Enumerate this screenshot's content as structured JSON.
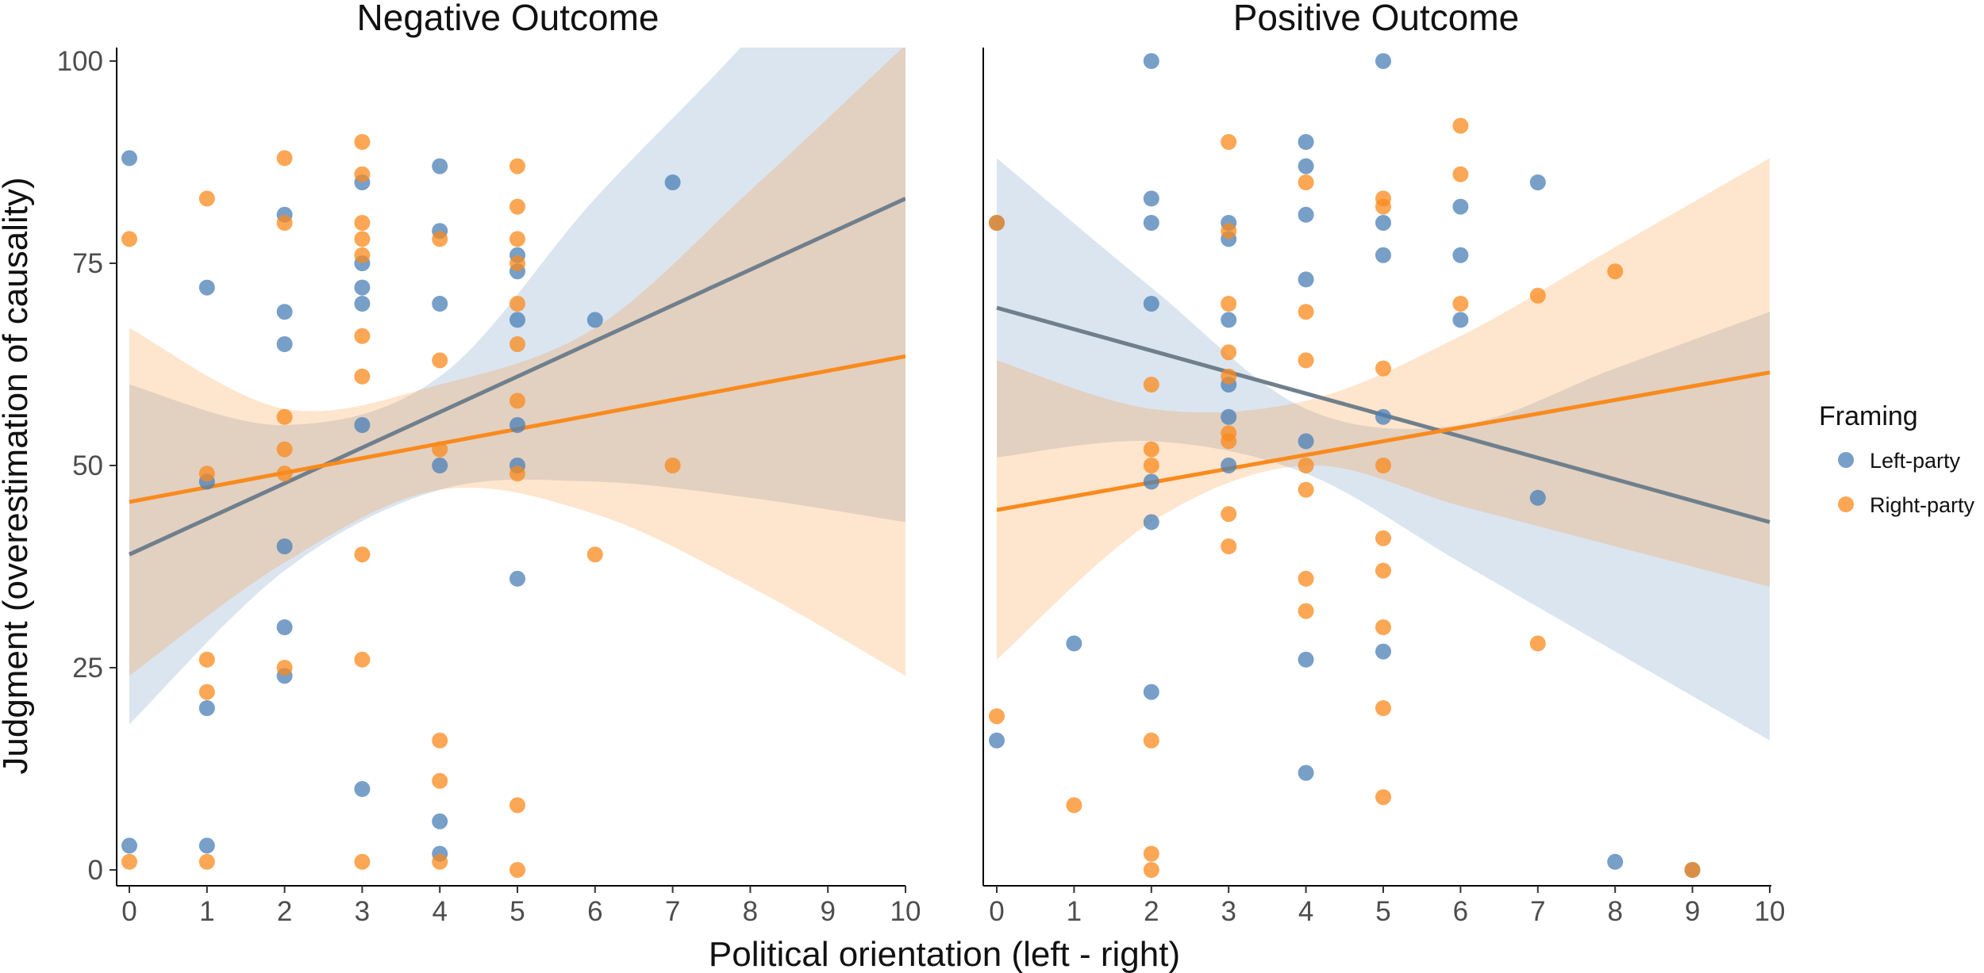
{
  "chart_data": {
    "type": "scatter",
    "xlabel": "Political orientation (left - right)",
    "ylabel": "Judgment (overestimation of causality)",
    "xlim": [
      0,
      10
    ],
    "ylim": [
      0,
      100
    ],
    "x_ticks": [
      "0",
      "1",
      "2",
      "3",
      "4",
      "5",
      "6",
      "7",
      "8",
      "9",
      "10"
    ],
    "y_ticks": [
      "0",
      "25",
      "50",
      "75",
      "100"
    ],
    "grid": false,
    "legend": {
      "title": "Framing",
      "placement": "right",
      "entries": [
        {
          "name": "Left-party",
          "color": "#4a7fb5"
        },
        {
          "name": "Right-party",
          "color": "#f98a1c"
        }
      ]
    },
    "panels": [
      {
        "title": "Negative Outcome",
        "series": [
          {
            "name": "Left-party",
            "color": "#4a7fb5",
            "points": [
              [
                0,
                88
              ],
              [
                0,
                3
              ],
              [
                1,
                72
              ],
              [
                1,
                48
              ],
              [
                1,
                20
              ],
              [
                1,
                3
              ],
              [
                2,
                81
              ],
              [
                2,
                69
              ],
              [
                2,
                65
              ],
              [
                2,
                40
              ],
              [
                2,
                30
              ],
              [
                2,
                24
              ],
              [
                3,
                85
              ],
              [
                3,
                75
              ],
              [
                3,
                72
              ],
              [
                3,
                70
              ],
              [
                3,
                55
              ],
              [
                3,
                10
              ],
              [
                4,
                87
              ],
              [
                4,
                79
              ],
              [
                4,
                70
              ],
              [
                4,
                50
              ],
              [
                4,
                6
              ],
              [
                4,
                2
              ],
              [
                5,
                76
              ],
              [
                5,
                74
              ],
              [
                5,
                68
              ],
              [
                5,
                55
              ],
              [
                5,
                50
              ],
              [
                5,
                36
              ],
              [
                6,
                68
              ],
              [
                7,
                85
              ]
            ],
            "fit": {
              "y_at_xmin": 39,
              "y_at_xmax": 83
            },
            "ci_lower": [
              18,
              37,
              47,
              48,
              46,
              43
            ],
            "ci_upper": [
              60,
              55,
              61,
              83,
              103,
              126
            ]
          },
          {
            "name": "Right-party",
            "color": "#f98a1c",
            "points": [
              [
                0,
                78
              ],
              [
                0,
                1
              ],
              [
                1,
                83
              ],
              [
                1,
                49
              ],
              [
                1,
                26
              ],
              [
                1,
                22
              ],
              [
                1,
                1
              ],
              [
                2,
                88
              ],
              [
                2,
                80
              ],
              [
                2,
                56
              ],
              [
                2,
                52
              ],
              [
                2,
                49
              ],
              [
                2,
                25
              ],
              [
                3,
                90
              ],
              [
                3,
                86
              ],
              [
                3,
                80
              ],
              [
                3,
                78
              ],
              [
                3,
                76
              ],
              [
                3,
                66
              ],
              [
                3,
                61
              ],
              [
                3,
                39
              ],
              [
                3,
                26
              ],
              [
                3,
                1
              ],
              [
                4,
                78
              ],
              [
                4,
                63
              ],
              [
                4,
                52
              ],
              [
                4,
                16
              ],
              [
                4,
                11
              ],
              [
                4,
                1
              ],
              [
                5,
                87
              ],
              [
                5,
                82
              ],
              [
                5,
                78
              ],
              [
                5,
                75
              ],
              [
                5,
                70
              ],
              [
                5,
                65
              ],
              [
                5,
                58
              ],
              [
                5,
                49
              ],
              [
                5,
                8
              ],
              [
                5,
                0
              ],
              [
                6,
                39
              ],
              [
                7,
                50
              ]
            ],
            "fit": {
              "y_at_xmin": 45.5,
              "y_at_xmax": 63.5
            },
            "ci_lower": [
              24,
              38,
              47,
              44,
              35,
              24
            ],
            "ci_upper": [
              67,
              57,
              60,
              67,
              84,
              102
            ]
          }
        ]
      },
      {
        "title": "Positive Outcome",
        "series": [
          {
            "name": "Left-party",
            "color": "#4a7fb5",
            "points": [
              [
                0,
                16
              ],
              [
                0,
                80
              ],
              [
                1,
                28
              ],
              [
                2,
                100
              ],
              [
                2,
                83
              ],
              [
                2,
                80
              ],
              [
                2,
                70
              ],
              [
                2,
                48
              ],
              [
                2,
                43
              ],
              [
                2,
                22
              ],
              [
                3,
                80
              ],
              [
                3,
                78
              ],
              [
                3,
                68
              ],
              [
                3,
                60
              ],
              [
                3,
                56
              ],
              [
                3,
                50
              ],
              [
                4,
                90
              ],
              [
                4,
                87
              ],
              [
                4,
                81
              ],
              [
                4,
                73
              ],
              [
                4,
                53
              ],
              [
                4,
                26
              ],
              [
                4,
                12
              ],
              [
                5,
                100
              ],
              [
                5,
                80
              ],
              [
                5,
                76
              ],
              [
                5,
                56
              ],
              [
                5,
                27
              ],
              [
                6,
                82
              ],
              [
                6,
                76
              ],
              [
                6,
                68
              ],
              [
                7,
                85
              ],
              [
                7,
                46
              ],
              [
                8,
                1
              ],
              [
                9,
                0
              ]
            ],
            "fit": {
              "y_at_xmin": 69.5,
              "y_at_xmax": 43
            },
            "ci_lower": [
              51,
              53,
              49,
              38,
              27,
              16
            ],
            "ci_upper": [
              88,
              72,
              57,
              55,
              62,
              69
            ]
          },
          {
            "name": "Right-party",
            "color": "#f98a1c",
            "points": [
              [
                0,
                80
              ],
              [
                0,
                19
              ],
              [
                1,
                8
              ],
              [
                2,
                60
              ],
              [
                2,
                52
              ],
              [
                2,
                50
              ],
              [
                2,
                16
              ],
              [
                2,
                2
              ],
              [
                2,
                0
              ],
              [
                3,
                90
              ],
              [
                3,
                79
              ],
              [
                3,
                70
              ],
              [
                3,
                64
              ],
              [
                3,
                61
              ],
              [
                3,
                54
              ],
              [
                3,
                53
              ],
              [
                3,
                44
              ],
              [
                3,
                40
              ],
              [
                4,
                85
              ],
              [
                4,
                69
              ],
              [
                4,
                63
              ],
              [
                4,
                50
              ],
              [
                4,
                47
              ],
              [
                4,
                36
              ],
              [
                4,
                32
              ],
              [
                5,
                83
              ],
              [
                5,
                82
              ],
              [
                5,
                62
              ],
              [
                5,
                50
              ],
              [
                5,
                41
              ],
              [
                5,
                37
              ],
              [
                5,
                30
              ],
              [
                5,
                20
              ],
              [
                5,
                9
              ],
              [
                6,
                92
              ],
              [
                6,
                86
              ],
              [
                6,
                70
              ],
              [
                7,
                71
              ],
              [
                7,
                28
              ],
              [
                8,
                74
              ],
              [
                9,
                0
              ]
            ],
            "fit": {
              "y_at_xmin": 44.5,
              "y_at_xmax": 61.5
            },
            "ci_lower": [
              26,
              43,
              50,
              45,
              40,
              35
            ],
            "ci_upper": [
              63,
              57,
              58,
              66,
              77,
              88
            ]
          }
        ]
      }
    ]
  }
}
